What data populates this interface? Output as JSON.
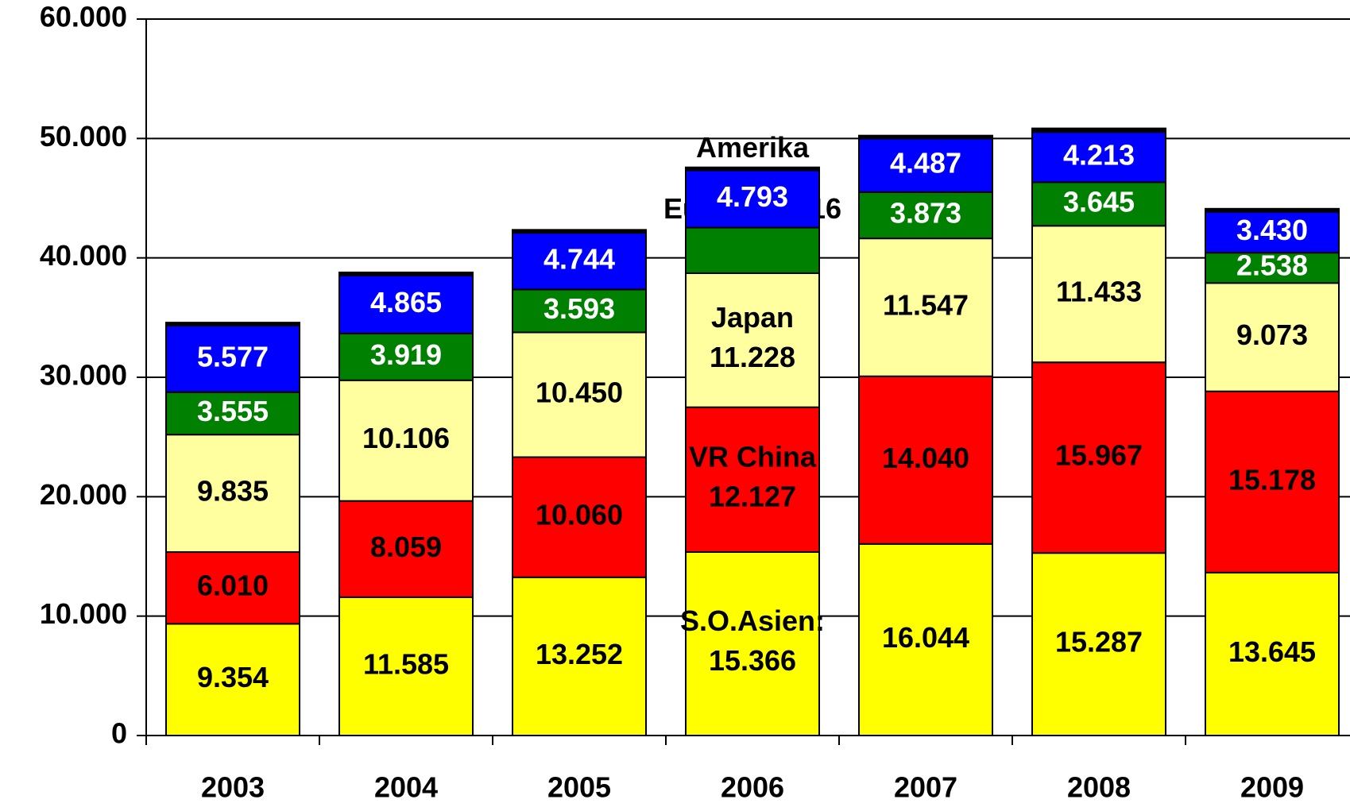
{
  "chart_data": {
    "type": "stacked_bar",
    "categories": [
      "2003",
      "2004",
      "2005",
      "2006",
      "2007",
      "2008",
      "2009"
    ],
    "series": [
      {
        "name": "S.O.Asien:",
        "color": "#ffff00",
        "label_color": "#000000",
        "values": [
          9354,
          11585,
          13252,
          15366,
          16044,
          15287,
          13645
        ],
        "value_labels": [
          "9.354",
          "11.585",
          "13.252",
          "15.366",
          "16.044",
          "15.287",
          "13.645"
        ]
      },
      {
        "name": "VR China",
        "color": "#ff0000",
        "label_color": "#000000",
        "values": [
          6010,
          8059,
          10060,
          12127,
          14040,
          15967,
          15178
        ],
        "value_labels": [
          "6.010",
          "8.059",
          "10.060",
          "12.127",
          "14.040",
          "15.967",
          "15.178"
        ]
      },
      {
        "name": "Japan",
        "color": "#ffffa0",
        "label_color": "#000000",
        "values": [
          9835,
          10106,
          10450,
          11228,
          11547,
          11433,
          9073
        ],
        "value_labels": [
          "9.835",
          "10.106",
          "10.450",
          "11.228",
          "11.547",
          "11.433",
          "9.073"
        ]
      },
      {
        "name": "Europa",
        "color": "#008000",
        "label_color": "#ffffff",
        "values": [
          3555,
          3919,
          3593,
          3816,
          3873,
          3645,
          2538
        ],
        "value_labels": [
          "3.555",
          "3.919",
          "3.593",
          "3.816",
          "3.873",
          "3.645",
          "2.538"
        ]
      },
      {
        "name": "Amerika",
        "color": "#0000ff",
        "label_color": "#ffffff",
        "values": [
          5577,
          4865,
          4744,
          4793,
          4487,
          4213,
          3430
        ],
        "value_labels": [
          "5.577",
          "4.865",
          "4.744",
          "4.793",
          "4.487",
          "4.213",
          "3.430"
        ]
      },
      {
        "color": "#000000",
        "values": [
          250,
          250,
          250,
          250,
          250,
          300,
          250
        ]
      }
    ],
    "ylim": [
      0,
      60000
    ],
    "yticks": [
      0,
      {
        "value": 10000,
        "label": "10.000"
      },
      {
        "value": 20000,
        "label": "20.000"
      },
      {
        "value": 30000,
        "label": "30.000"
      },
      {
        "value": 40000,
        "label": "40.000"
      },
      {
        "value": 50000,
        "label": "50.000"
      },
      {
        "value": 60000,
        "label": "60.000"
      }
    ],
    "grid": true
  }
}
